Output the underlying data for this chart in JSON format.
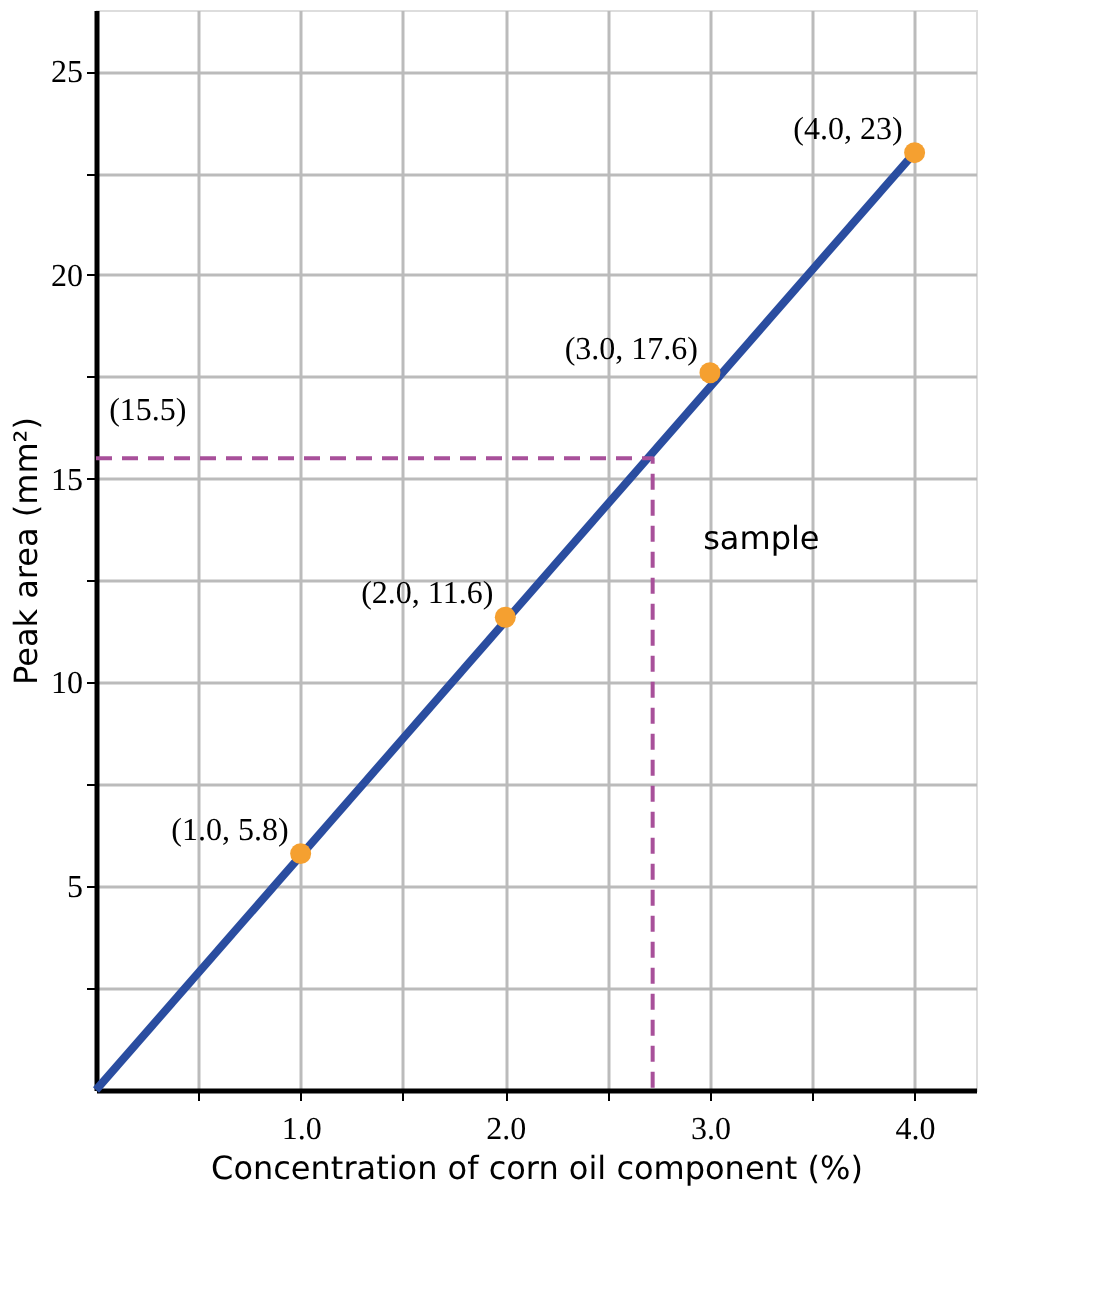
{
  "chart_data": {
    "type": "line",
    "xlabel": "Concentration of corn oil component (%)",
    "ylabel": "Peak area (mm²)",
    "xlim": [
      0,
      4.3
    ],
    "ylim": [
      0,
      26.5
    ],
    "xticks": [
      {
        "value": 0.5,
        "label": null
      },
      {
        "value": 1,
        "label": "1.0"
      },
      {
        "value": 1.5,
        "label": null
      },
      {
        "value": 2,
        "label": "2.0"
      },
      {
        "value": 2.5,
        "label": null
      },
      {
        "value": 3,
        "label": "3.0"
      },
      {
        "value": 3.5,
        "label": null
      },
      {
        "value": 4,
        "label": "4.0"
      }
    ],
    "yticks": [
      {
        "value": 2.5,
        "label": null
      },
      5,
      {
        "value": 7.5,
        "label": null
      },
      10,
      {
        "value": 12.5,
        "label": null
      },
      15,
      {
        "value": 17.5,
        "label": null
      },
      20,
      {
        "value": 22.5,
        "label": null
      },
      25
    ],
    "grid": true,
    "series": [
      {
        "color": "#2a4da0",
        "x": [
          0,
          4
        ],
        "values": [
          0,
          23
        ],
        "line_style": "solid"
      },
      {
        "type": "line",
        "color": "#a8509a",
        "x": [
          0,
          2.72,
          2.72
        ],
        "values": [
          15.5,
          15.5,
          0
        ],
        "line_style": "dashed"
      },
      {
        "type": "scatter",
        "color": "#f5a030",
        "x": [
          1,
          2,
          3,
          4
        ],
        "values": [
          5.8,
          11.6,
          17.6,
          23
        ],
        "marker": "circle",
        "value_labels": [
          "(1.0, 5.8)",
          "(2.0, 11.6)",
          "(3.0, 17.6)",
          "(4.0, 23)"
        ]
      }
    ],
    "annotations": [
      "(15.5)",
      "sample"
    ]
  }
}
